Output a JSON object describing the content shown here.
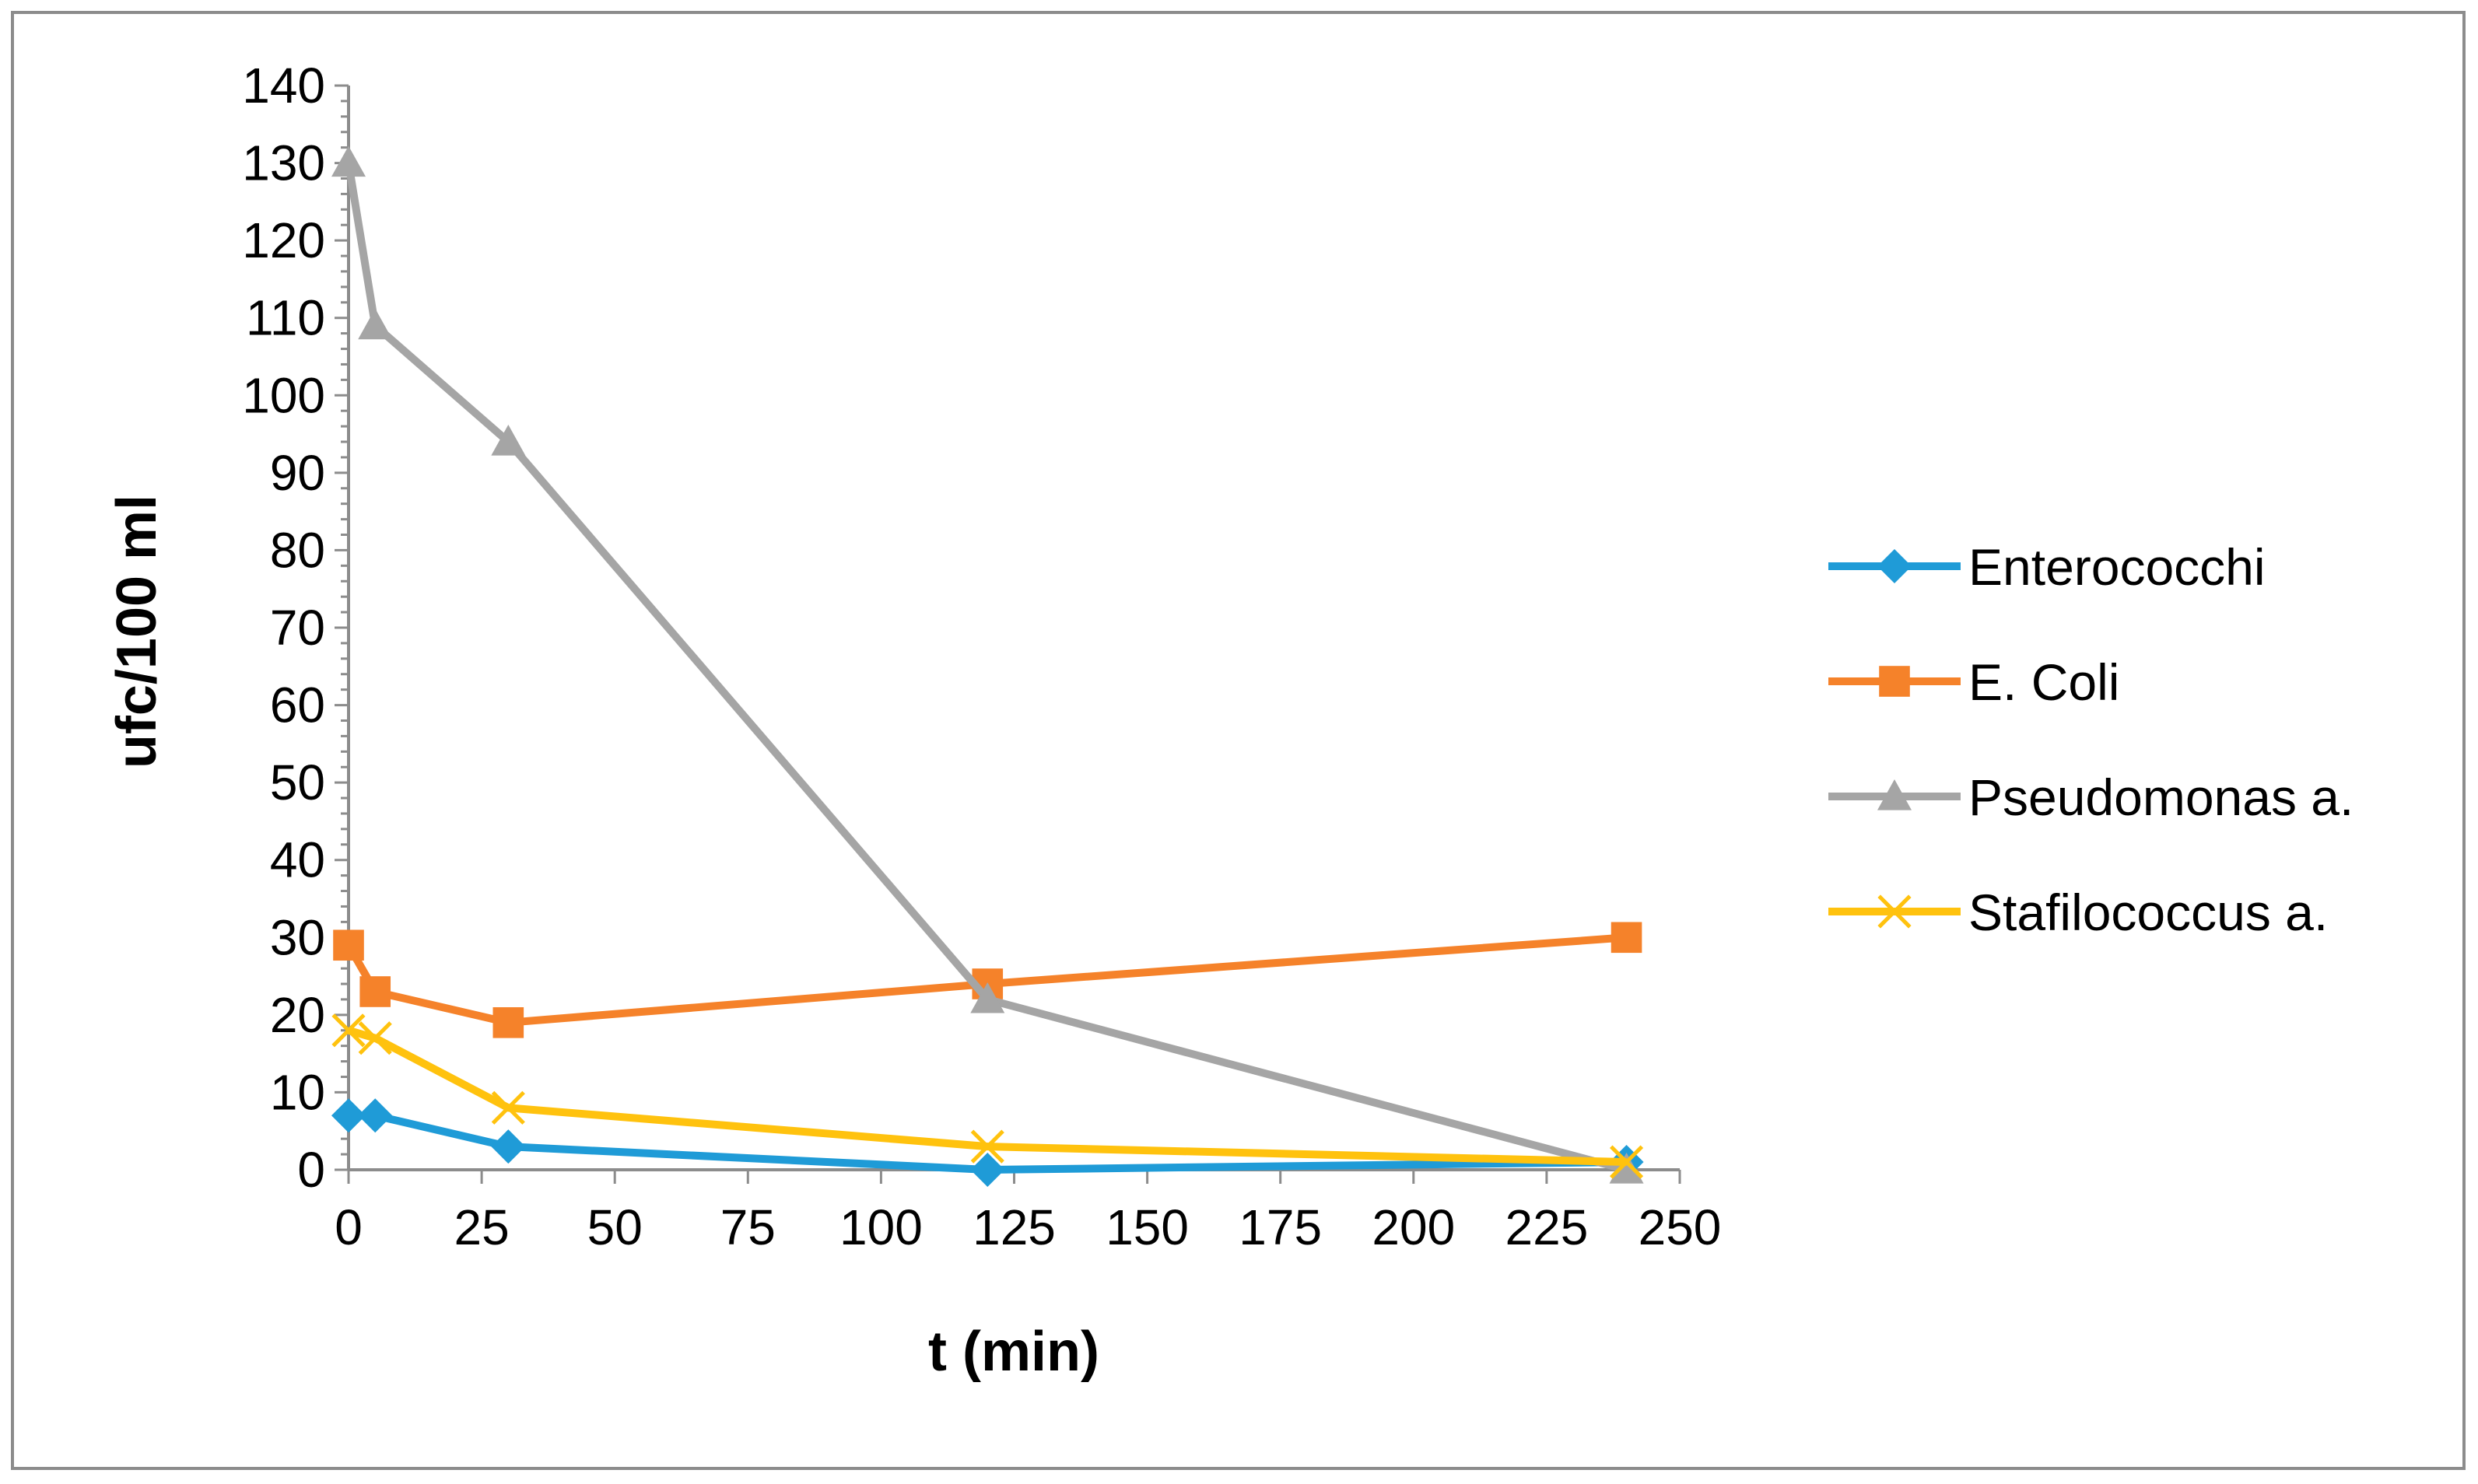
{
  "chart_data": {
    "type": "line",
    "title": "",
    "xlabel": "t (min)",
    "ylabel": "ufc/100 ml",
    "xlim": [
      0,
      250
    ],
    "ylim": [
      0,
      140
    ],
    "x_ticks": [
      0,
      25,
      50,
      75,
      100,
      125,
      150,
      175,
      200,
      225,
      250
    ],
    "y_ticks": [
      0,
      10,
      20,
      30,
      40,
      50,
      60,
      70,
      80,
      90,
      100,
      110,
      120,
      130,
      140
    ],
    "grid": false,
    "legend_position": "right",
    "x": [
      0,
      5,
      30,
      120,
      240
    ],
    "series": [
      {
        "name": "Enterococchi",
        "color": "#1f9bd7",
        "marker": "diamond",
        "values": [
          7,
          7,
          3,
          0,
          1
        ]
      },
      {
        "name": "E. Coli",
        "color": "#f5822a",
        "marker": "square",
        "values": [
          29,
          23,
          19,
          24,
          30
        ]
      },
      {
        "name": "Pseudomonas a.",
        "color": "#a5a5a5",
        "marker": "triangle",
        "values": [
          130,
          109,
          94,
          22,
          0
        ]
      },
      {
        "name": "Stafilococcus a.",
        "color": "#ffc20e",
        "marker": "x",
        "values": [
          18,
          17,
          8,
          3,
          1
        ]
      }
    ]
  }
}
